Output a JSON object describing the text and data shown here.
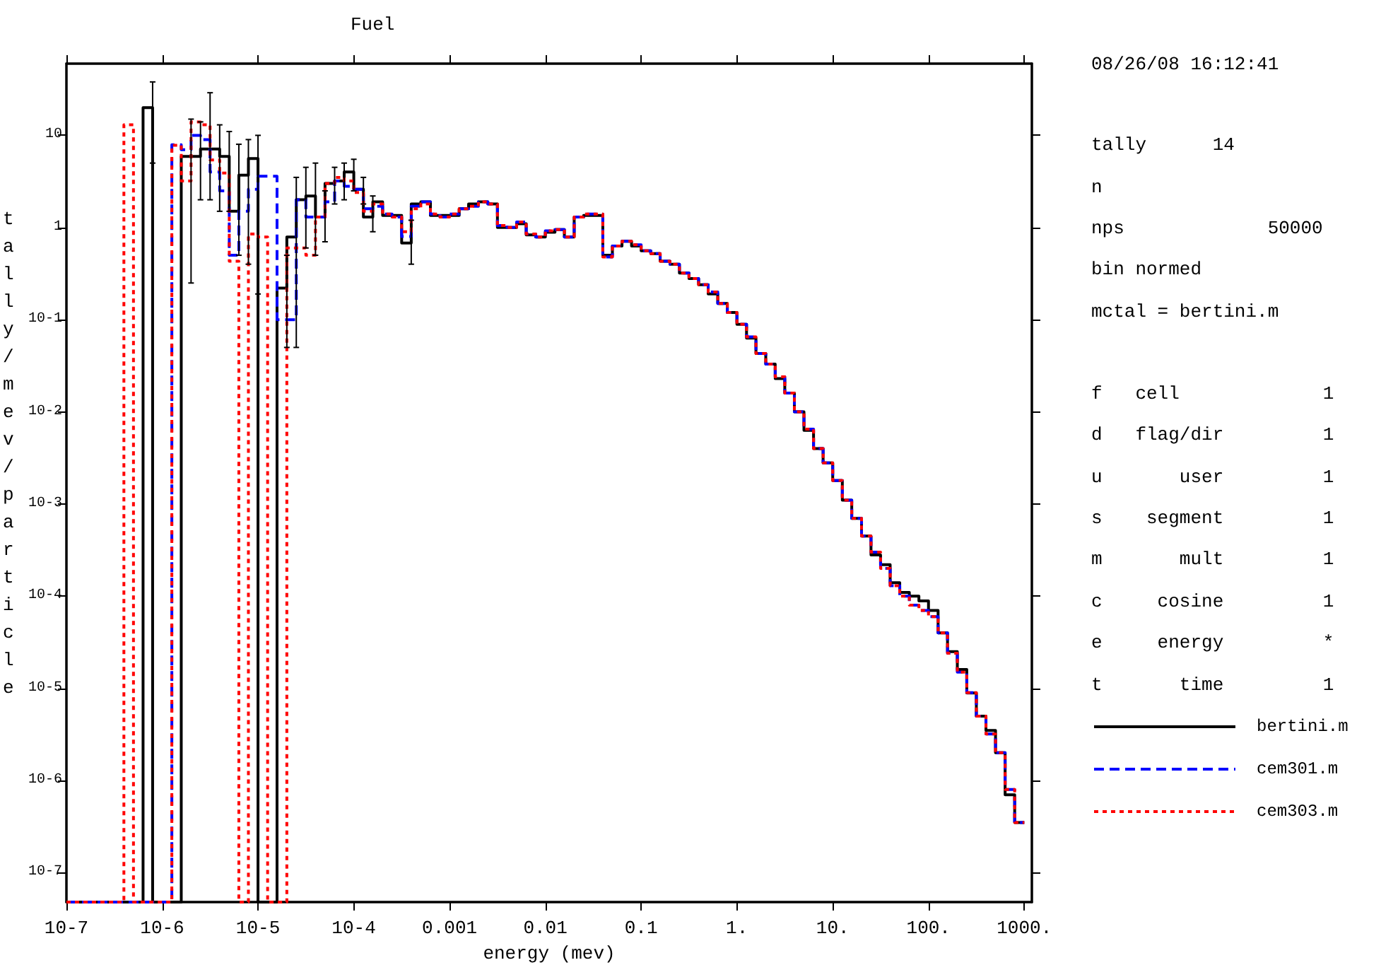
{
  "chart_data": {
    "type": "histogram",
    "title": "Fuel",
    "xlabel": "energy (mev)",
    "ylabel": "tally/mev/particle",
    "annotations": [
      "08/26/08 16:12:41",
      "tally      14",
      "n",
      "nps             50000",
      "bin normed",
      "mctal = bertini.m",
      "f   cell             1",
      "d   flag/dir         1",
      "u       user         1",
      "s    segment         1",
      "m       mult         1",
      "c     cosine         1",
      "e     energy         *",
      "t       time         1"
    ],
    "bins": [
      1e-07,
      1.26e-07,
      1.58e-07,
      2e-07,
      2.51e-07,
      3.16e-07,
      3.98e-07,
      5.01e-07,
      6.31e-07,
      7.94e-07,
      1e-06,
      1.26e-06,
      1.58e-06,
      2e-06,
      2.51e-06,
      3.16e-06,
      3.98e-06,
      5.01e-06,
      6.31e-06,
      7.94e-06,
      1e-05,
      1.26e-05,
      1.58e-05,
      2e-05,
      2.51e-05,
      3.16e-05,
      3.98e-05,
      5.01e-05,
      6.31e-05,
      7.94e-05,
      0.0001,
      0.000126,
      0.000158,
      0.0002,
      0.000251,
      0.000316,
      0.000398,
      0.000501,
      0.000631,
      0.000794,
      0.001,
      0.00126,
      0.00158,
      0.002,
      0.00251,
      0.00316,
      0.00398,
      0.00501,
      0.00631,
      0.00794,
      0.01,
      0.0126,
      0.0158,
      0.02,
      0.0251,
      0.0316,
      0.0398,
      0.0501,
      0.0631,
      0.0794,
      0.1,
      0.126,
      0.158,
      0.2,
      0.251,
      0.316,
      0.398,
      0.501,
      0.631,
      0.794,
      1,
      1.26,
      1.58,
      2,
      2.51,
      3.16,
      3.98,
      5.01,
      6.31,
      7.94,
      10,
      12.6,
      15.8,
      20,
      25.1,
      31.6,
      39.8,
      50.1,
      63.1,
      79.4,
      100,
      126,
      158,
      200,
      251,
      316,
      398,
      501,
      631,
      794,
      1000
    ],
    "series": [
      {
        "name": "bertini.m",
        "color": "#000000",
        "line_style": "solid",
        "values": [
          null,
          null,
          null,
          null,
          null,
          null,
          null,
          null,
          20,
          null,
          null,
          null,
          5.9,
          5.9,
          7.1,
          7.1,
          5.9,
          1.5,
          3.7,
          5.6,
          null,
          null,
          0.22,
          0.79,
          2.0,
          2.2,
          1.3,
          3.0,
          3.2,
          4.0,
          2.6,
          1.3,
          1.9,
          1.35,
          1.35,
          0.68,
          1.8,
          1.9,
          1.35,
          1.35,
          1.35,
          1.6,
          1.8,
          1.9,
          1.8,
          1.0,
          1.0,
          1.1,
          0.83,
          0.79,
          0.89,
          0.95,
          0.79,
          1.3,
          1.35,
          1.35,
          0.5,
          0.63,
          0.71,
          0.63,
          0.56,
          0.52,
          0.43,
          0.4,
          0.32,
          0.28,
          0.24,
          0.19,
          0.15,
          0.12,
          0.089,
          0.063,
          0.043,
          0.033,
          0.023,
          0.016,
          0.01,
          0.0063,
          0.004,
          0.0028,
          0.0018,
          0.0011,
          0.0007,
          0.00045,
          0.00028,
          0.00022,
          0.00014,
          0.00011,
          0.0001,
          8.9e-05,
          7e-05,
          4e-05,
          2.5e-05,
          1.6e-05,
          8.9e-06,
          5e-06,
          3.5e-06,
          2e-06,
          7e-07,
          3.5e-07
        ],
        "errors": [
          null,
          null,
          null,
          null,
          null,
          null,
          null,
          null,
          [
            5,
            38
          ],
          null,
          null,
          null,
          [
            0.25,
            15
          ],
          [
            2,
            14
          ],
          [
            2,
            29
          ],
          [
            1.5,
            13
          ],
          [
            1.5,
            11
          ],
          [
            0.5,
            8
          ],
          [
            0.4,
            9
          ],
          [
            0.19,
            10
          ],
          null,
          null,
          [
            0.05,
            0.5
          ],
          [
            0.05,
            3.5
          ],
          [
            0.6,
            4.5
          ],
          [
            0.5,
            5
          ],
          [
            0.7,
            2.5
          ],
          [
            1.8,
            4.5
          ],
          [
            2,
            5
          ],
          [
            2.5,
            5.5
          ],
          [
            1.8,
            3.5
          ],
          [
            0.9,
            2.2
          ],
          null,
          null,
          null,
          [
            0.4,
            1.2
          ],
          null,
          null,
          null,
          null,
          null,
          null,
          null,
          null,
          null,
          null,
          null,
          null,
          null,
          null,
          null,
          null,
          null,
          null,
          null,
          null,
          null,
          null,
          null,
          null,
          null,
          null,
          null,
          null,
          null,
          null,
          null,
          null,
          null,
          null,
          null,
          null,
          null,
          null,
          null,
          null,
          null,
          null,
          null,
          null,
          null,
          null,
          null,
          null,
          null,
          null,
          null,
          null,
          null,
          null,
          null,
          null,
          null,
          null,
          null,
          null,
          null,
          null,
          null,
          null
        ]
      },
      {
        "name": "cem301.m",
        "color": "#0000ff",
        "line_style": "dashed",
        "values": [
          null,
          null,
          null,
          null,
          null,
          null,
          null,
          null,
          null,
          null,
          null,
          7.9,
          7.0,
          10,
          9,
          4,
          2.5,
          0.5,
          1.5,
          2.6,
          3.6,
          3.6,
          0.1,
          0.1,
          2.0,
          1.3,
          1.3,
          1.9,
          3.2,
          2.8,
          2.6,
          1.6,
          1.7,
          1.4,
          1.3,
          0.8,
          1.7,
          1.9,
          1.4,
          1.3,
          1.4,
          1.6,
          1.7,
          1.9,
          1.8,
          1.05,
          1.0,
          1.15,
          0.85,
          0.79,
          0.92,
          0.95,
          0.79,
          1.3,
          1.4,
          1.4,
          0.48,
          0.63,
          0.71,
          0.65,
          0.56,
          0.52,
          0.43,
          0.4,
          0.32,
          0.28,
          0.24,
          0.2,
          0.15,
          0.12,
          0.089,
          0.065,
          0.043,
          0.033,
          0.024,
          0.016,
          0.01,
          0.0065,
          0.004,
          0.0028,
          0.0018,
          0.0011,
          0.0007,
          0.00045,
          0.0003,
          0.0002,
          0.00013,
          0.0001,
          8e-05,
          7e-05,
          6e-05,
          4e-05,
          2.4e-05,
          1.5e-05,
          9e-06,
          5e-06,
          3.2e-06,
          2e-06,
          8e-07,
          3.5e-07
        ]
      },
      {
        "name": "cem303.m",
        "color": "#ff0000",
        "line_style": "dotted",
        "values": [
          null,
          null,
          null,
          null,
          null,
          null,
          13,
          null,
          null,
          null,
          null,
          7.8,
          3.2,
          14,
          13,
          5.4,
          3.9,
          0.43,
          null,
          0.85,
          0.79,
          null,
          null,
          0.6,
          0.6,
          0.5,
          1.3,
          3.0,
          3.5,
          3.2,
          2.4,
          1.5,
          1.8,
          1.4,
          1.3,
          0.9,
          1.6,
          1.8,
          1.4,
          1.3,
          1.4,
          1.6,
          1.7,
          1.9,
          1.8,
          1.05,
          1.0,
          1.15,
          0.85,
          0.79,
          0.92,
          0.95,
          0.79,
          1.3,
          1.4,
          1.4,
          0.48,
          0.63,
          0.71,
          0.65,
          0.56,
          0.52,
          0.43,
          0.4,
          0.32,
          0.28,
          0.24,
          0.2,
          0.15,
          0.12,
          0.089,
          0.065,
          0.043,
          0.033,
          0.024,
          0.016,
          0.01,
          0.0065,
          0.004,
          0.0028,
          0.0018,
          0.0011,
          0.0007,
          0.00045,
          0.0003,
          0.0002,
          0.00013,
          0.0001,
          8e-05,
          7e-05,
          6e-05,
          4e-05,
          2.4e-05,
          1.5e-05,
          9e-06,
          5e-06,
          3.2e-06,
          2e-06,
          8e-07,
          3.5e-07
        ]
      }
    ],
    "log": "xy",
    "xlim": [
      1e-07,
      1200
    ],
    "ylim": [
      4.8e-08,
      60
    ],
    "xticks": [
      {
        "value": 1e-07,
        "label": "10-7"
      },
      {
        "value": 1e-06,
        "label": "10-6"
      },
      {
        "value": 1e-05,
        "label": "10-5"
      },
      {
        "value": 0.0001,
        "label": "10-4"
      },
      {
        "value": 0.001,
        "label": "0.001"
      },
      {
        "value": 0.01,
        "label": "0.01"
      },
      {
        "value": 0.1,
        "label": "0.1"
      },
      {
        "value": 1,
        "label": "1."
      },
      {
        "value": 10,
        "label": "10."
      },
      {
        "value": 100,
        "label": "100."
      },
      {
        "value": 1000,
        "label": "1000."
      }
    ],
    "yticks": [
      {
        "value": 1e-07,
        "label": "10-7"
      },
      {
        "value": 1e-06,
        "label": "10-6"
      },
      {
        "value": 1e-05,
        "label": "10-5"
      },
      {
        "value": 0.0001,
        "label": "10-4"
      },
      {
        "value": 0.001,
        "label": "10-3"
      },
      {
        "value": 0.01,
        "label": "10-2"
      },
      {
        "value": 0.1,
        "label": "10-1"
      },
      {
        "value": 1,
        "label": "1"
      },
      {
        "value": 10,
        "label": "10"
      }
    ],
    "grid": false,
    "legend": "right",
    "marker": "none"
  }
}
